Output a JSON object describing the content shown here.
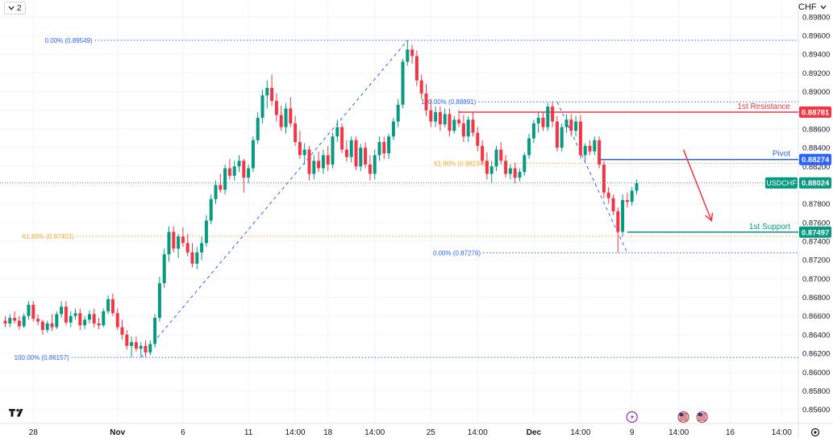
{
  "toolbar": {
    "collapse_icon": "chevron-down-icon",
    "collapse_label": "2",
    "currency_label": "CHF",
    "currency_icon": "chevron-down-icon",
    "settings_icon": "gear-icon",
    "logo_icon": "tradingview-logo-icon"
  },
  "chart_data": {
    "type": "candlestick",
    "symbol": "USDCHF",
    "currency": "CHF",
    "ylim": [
      0.8545,
      0.8998
    ],
    "y_ticks": [
      0.856,
      0.858,
      0.86,
      0.862,
      0.864,
      0.866,
      0.868,
      0.87,
      0.872,
      0.874,
      0.876,
      0.878,
      0.88,
      0.882,
      0.884,
      0.886,
      0.888,
      0.89,
      0.892,
      0.894,
      0.896,
      0.898
    ],
    "y_tick_labels": [
      "0.85600",
      "0.85800",
      "0.86000",
      "0.86200",
      "0.86400",
      "0.86600",
      "0.86800",
      "0.87000",
      "0.87200",
      "0.87400",
      "0.87600",
      "0.87800",
      "0.88000",
      "0.88200",
      "0.88400",
      "0.88600",
      "0.88800",
      "0.89000",
      "0.89200",
      "0.89400",
      "0.89600",
      "0.89800"
    ],
    "x_labels": [
      {
        "text": "28",
        "bar": 6
      },
      {
        "text": "Nov",
        "bar": 24
      },
      {
        "text": "6",
        "bar": 38
      },
      {
        "text": "11",
        "bar": 52
      },
      {
        "text": "14:00",
        "bar": 62
      },
      {
        "text": "18",
        "bar": 69
      },
      {
        "text": "14:00",
        "bar": 79
      },
      {
        "text": "25",
        "bar": 91
      },
      {
        "text": "14:00",
        "bar": 101
      },
      {
        "text": "Dec",
        "bar": 113
      },
      {
        "text": "14:00",
        "bar": 123
      },
      {
        "text": "9",
        "bar": 134
      },
      {
        "text": "14:00",
        "bar": 144
      },
      {
        "text": "16",
        "bar": 155
      },
      {
        "text": "14:00",
        "bar": 166
      }
    ],
    "series": [
      {
        "name": "USDCHF",
        "ohlc": [
          [
            0.8655,
            0.866,
            0.8648,
            0.8652
          ],
          [
            0.8652,
            0.8662,
            0.8648,
            0.8658
          ],
          [
            0.8658,
            0.8665,
            0.8652,
            0.8655
          ],
          [
            0.8655,
            0.866,
            0.8645,
            0.8649
          ],
          [
            0.8649,
            0.8663,
            0.8647,
            0.866
          ],
          [
            0.866,
            0.8676,
            0.8656,
            0.8672
          ],
          [
            0.8672,
            0.8676,
            0.8654,
            0.8657
          ],
          [
            0.8657,
            0.8662,
            0.865,
            0.8654
          ],
          [
            0.8654,
            0.8656,
            0.864,
            0.8645
          ],
          [
            0.8645,
            0.8655,
            0.8642,
            0.8652
          ],
          [
            0.8652,
            0.8662,
            0.8644,
            0.8648
          ],
          [
            0.8648,
            0.8665,
            0.8646,
            0.8662
          ],
          [
            0.8662,
            0.8676,
            0.8658,
            0.867
          ],
          [
            0.867,
            0.8676,
            0.865,
            0.8653
          ],
          [
            0.8653,
            0.8665,
            0.8648,
            0.866
          ],
          [
            0.866,
            0.8668,
            0.8656,
            0.8663
          ],
          [
            0.8663,
            0.8668,
            0.8645,
            0.865
          ],
          [
            0.865,
            0.866,
            0.8646,
            0.8656
          ],
          [
            0.8656,
            0.8666,
            0.8652,
            0.8662
          ],
          [
            0.8662,
            0.8668,
            0.8648,
            0.8652
          ],
          [
            0.8652,
            0.8658,
            0.8646,
            0.865
          ],
          [
            0.865,
            0.8668,
            0.8648,
            0.8665
          ],
          [
            0.8665,
            0.8682,
            0.8662,
            0.8678
          ],
          [
            0.8678,
            0.8684,
            0.866,
            0.8663
          ],
          [
            0.8663,
            0.8668,
            0.8645,
            0.8648
          ],
          [
            0.8648,
            0.8656,
            0.8635,
            0.864
          ],
          [
            0.864,
            0.8645,
            0.8624,
            0.8628
          ],
          [
            0.8628,
            0.8638,
            0.8616,
            0.8632
          ],
          [
            0.8632,
            0.8638,
            0.8622,
            0.8625
          ],
          [
            0.8625,
            0.8632,
            0.8617,
            0.8628
          ],
          [
            0.8628,
            0.8634,
            0.8616,
            0.8621
          ],
          [
            0.8621,
            0.8634,
            0.8618,
            0.863
          ],
          [
            0.863,
            0.8662,
            0.8626,
            0.8658
          ],
          [
            0.8658,
            0.8702,
            0.8654,
            0.8695
          ],
          [
            0.8695,
            0.8732,
            0.869,
            0.8726
          ],
          [
            0.8726,
            0.8756,
            0.8718,
            0.875
          ],
          [
            0.875,
            0.8756,
            0.8728,
            0.8732
          ],
          [
            0.8732,
            0.8748,
            0.8722,
            0.8745
          ],
          [
            0.8745,
            0.8755,
            0.8734,
            0.8738
          ],
          [
            0.8738,
            0.8748,
            0.8724,
            0.8728
          ],
          [
            0.8728,
            0.8738,
            0.8712,
            0.8716
          ],
          [
            0.8716,
            0.8734,
            0.871,
            0.8728
          ],
          [
            0.8728,
            0.8745,
            0.872,
            0.8738
          ],
          [
            0.8738,
            0.8768,
            0.8734,
            0.8762
          ],
          [
            0.8762,
            0.879,
            0.8758,
            0.8785
          ],
          [
            0.8785,
            0.8805,
            0.878,
            0.88
          ],
          [
            0.88,
            0.8812,
            0.8792,
            0.8795
          ],
          [
            0.8795,
            0.8822,
            0.879,
            0.8818
          ],
          [
            0.8818,
            0.8828,
            0.8806,
            0.881
          ],
          [
            0.881,
            0.8826,
            0.8805,
            0.882
          ],
          [
            0.882,
            0.8832,
            0.8814,
            0.8826
          ],
          [
            0.8826,
            0.8828,
            0.8792,
            0.8808
          ],
          [
            0.8808,
            0.8822,
            0.8802,
            0.8818
          ],
          [
            0.8818,
            0.8852,
            0.8814,
            0.8848
          ],
          [
            0.8848,
            0.8878,
            0.8844,
            0.8872
          ],
          [
            0.8872,
            0.8902,
            0.8866,
            0.8896
          ],
          [
            0.8896,
            0.8912,
            0.8882,
            0.8904
          ],
          [
            0.8904,
            0.8918,
            0.8885,
            0.889
          ],
          [
            0.889,
            0.8898,
            0.8868,
            0.8875
          ],
          [
            0.8875,
            0.8885,
            0.8858,
            0.8862
          ],
          [
            0.8862,
            0.8888,
            0.8855,
            0.8882
          ],
          [
            0.8882,
            0.8894,
            0.8862,
            0.8866
          ],
          [
            0.8866,
            0.8874,
            0.8842,
            0.8846
          ],
          [
            0.8846,
            0.8858,
            0.8828,
            0.8832
          ],
          [
            0.8832,
            0.8845,
            0.8822,
            0.8838
          ],
          [
            0.8838,
            0.8842,
            0.8805,
            0.8812
          ],
          [
            0.8812,
            0.8832,
            0.8806,
            0.8826
          ],
          [
            0.8826,
            0.8836,
            0.8814,
            0.8818
          ],
          [
            0.8818,
            0.8838,
            0.8812,
            0.8832
          ],
          [
            0.8832,
            0.8842,
            0.8815,
            0.8822
          ],
          [
            0.8822,
            0.8856,
            0.8818,
            0.8852
          ],
          [
            0.8852,
            0.887,
            0.8846,
            0.8862
          ],
          [
            0.8862,
            0.8866,
            0.8834,
            0.8838
          ],
          [
            0.8838,
            0.8848,
            0.8825,
            0.883
          ],
          [
            0.883,
            0.8852,
            0.8824,
            0.8848
          ],
          [
            0.8848,
            0.8852,
            0.8816,
            0.882
          ],
          [
            0.882,
            0.8844,
            0.8815,
            0.884
          ],
          [
            0.884,
            0.8846,
            0.8818,
            0.8822
          ],
          [
            0.8822,
            0.8832,
            0.8805,
            0.8812
          ],
          [
            0.8812,
            0.8838,
            0.8806,
            0.8832
          ],
          [
            0.8832,
            0.8852,
            0.8826,
            0.8846
          ],
          [
            0.8846,
            0.8852,
            0.8828,
            0.8834
          ],
          [
            0.8834,
            0.8855,
            0.8828,
            0.8852
          ],
          [
            0.8852,
            0.8872,
            0.8848,
            0.8868
          ],
          [
            0.8868,
            0.8892,
            0.8862,
            0.8886
          ],
          [
            0.8886,
            0.8935,
            0.8882,
            0.8932
          ],
          [
            0.8932,
            0.8955,
            0.8928,
            0.8945
          ],
          [
            0.8945,
            0.895,
            0.893,
            0.8938
          ],
          [
            0.8938,
            0.8944,
            0.8906,
            0.8912
          ],
          [
            0.8912,
            0.8918,
            0.8892,
            0.8898
          ],
          [
            0.8898,
            0.8908,
            0.8874,
            0.888
          ],
          [
            0.888,
            0.8892,
            0.8862,
            0.8868
          ],
          [
            0.8868,
            0.8884,
            0.8862,
            0.8878
          ],
          [
            0.8878,
            0.8884,
            0.8858,
            0.8865
          ],
          [
            0.8865,
            0.8882,
            0.8862,
            0.8876
          ],
          [
            0.8876,
            0.8882,
            0.8852,
            0.8858
          ],
          [
            0.8858,
            0.8874,
            0.8855,
            0.887
          ],
          [
            0.887,
            0.888,
            0.8862,
            0.8866
          ],
          [
            0.8866,
            0.8875,
            0.8846,
            0.8852
          ],
          [
            0.8852,
            0.8874,
            0.8846,
            0.887
          ],
          [
            0.887,
            0.8878,
            0.8852,
            0.8856
          ],
          [
            0.8856,
            0.8862,
            0.8836,
            0.8842
          ],
          [
            0.8842,
            0.8848,
            0.8822,
            0.8826
          ],
          [
            0.8826,
            0.8835,
            0.8806,
            0.8812
          ],
          [
            0.8812,
            0.8826,
            0.8802,
            0.882
          ],
          [
            0.882,
            0.8842,
            0.8815,
            0.8838
          ],
          [
            0.8838,
            0.8846,
            0.8822,
            0.8826
          ],
          [
            0.8826,
            0.8832,
            0.8808,
            0.8812
          ],
          [
            0.8812,
            0.8822,
            0.8806,
            0.8818
          ],
          [
            0.8818,
            0.8824,
            0.8802,
            0.8808
          ],
          [
            0.8808,
            0.8818,
            0.8804,
            0.8814
          ],
          [
            0.8814,
            0.8835,
            0.881,
            0.8832
          ],
          [
            0.8832,
            0.8855,
            0.8828,
            0.885
          ],
          [
            0.885,
            0.887,
            0.8845,
            0.8866
          ],
          [
            0.8866,
            0.8878,
            0.8856,
            0.8872
          ],
          [
            0.8872,
            0.8878,
            0.8858,
            0.8862
          ],
          [
            0.8862,
            0.8888,
            0.8858,
            0.8884
          ],
          [
            0.8884,
            0.8889,
            0.8862,
            0.8868
          ],
          [
            0.8868,
            0.8874,
            0.8836,
            0.884
          ],
          [
            0.884,
            0.8866,
            0.8836,
            0.8862
          ],
          [
            0.8862,
            0.8876,
            0.8856,
            0.887
          ],
          [
            0.887,
            0.8876,
            0.8852,
            0.8858
          ],
          [
            0.8858,
            0.8874,
            0.8852,
            0.8868
          ],
          [
            0.8868,
            0.8875,
            0.8828,
            0.8832
          ],
          [
            0.8832,
            0.8845,
            0.8826,
            0.8842
          ],
          [
            0.8842,
            0.8848,
            0.8832,
            0.8836
          ],
          [
            0.8836,
            0.8852,
            0.8832,
            0.8848
          ],
          [
            0.8848,
            0.8852,
            0.8818,
            0.8822
          ],
          [
            0.8822,
            0.8826,
            0.8786,
            0.8792
          ],
          [
            0.8792,
            0.8798,
            0.878,
            0.8786
          ],
          [
            0.8786,
            0.879,
            0.8768,
            0.8772
          ],
          [
            0.8772,
            0.8776,
            0.8728,
            0.875
          ],
          [
            0.875,
            0.879,
            0.8745,
            0.8784
          ],
          [
            0.8784,
            0.8792,
            0.8776,
            0.8782
          ],
          [
            0.8782,
            0.8798,
            0.8778,
            0.8794
          ],
          [
            0.8794,
            0.8806,
            0.879,
            0.8802
          ]
        ]
      }
    ],
    "fib_retracements": [
      {
        "from_bar": 29,
        "to_bar": 86,
        "levels": [
          {
            "label": "0.00% (0.89549)",
            "price": 0.89549,
            "color": "#2962ff",
            "labelBar": 19
          },
          {
            "label": "61.80% (0.87453)",
            "price": 0.87453,
            "color": "#f5a623",
            "labelBar": 15
          },
          {
            "label": "100.00% (0.86157)",
            "price": 0.86157,
            "color": "#2962ff",
            "labelBar": 14
          }
        ]
      },
      {
        "from_bar": 118,
        "to_bar": 133,
        "levels": [
          {
            "label": "100.00% (0.88891)",
            "price": 0.88891,
            "color": "#2962ff",
            "labelBar": 101
          },
          {
            "label": "61.80% (0.88234)",
            "price": 0.88234,
            "color": "#f5a623",
            "labelBar": 103
          },
          {
            "label": "0.00% (0.87276)",
            "price": 0.87276,
            "color": "#2962ff",
            "labelBar": 102
          }
        ]
      }
    ],
    "horizontal_levels": [
      {
        "name": "1st Resistance",
        "price": 0.88781,
        "label": "0.88781",
        "color": "#f23645",
        "from_bar": 97
      },
      {
        "name": "Pivot",
        "price": 0.88274,
        "label": "0.88274",
        "color": "#2962ff",
        "from_bar": 127
      },
      {
        "name": "1st Support",
        "price": 0.87497,
        "label": "0.87497",
        "color": "#089981",
        "from_bar": 133
      }
    ],
    "last_price": {
      "symbol": "USDCHF",
      "price": 0.88024,
      "label": "0.88024",
      "color": "#089981"
    },
    "projection_arrow": {
      "from": [
        145,
        0.8838
      ],
      "to": [
        151,
        0.8762
      ],
      "color": "#f23645"
    },
    "event_icons": [
      {
        "name": "lightning-icon",
        "bar": 134,
        "color": "#9c27b0"
      },
      {
        "name": "us-flag-icon",
        "bar": 145
      },
      {
        "name": "us-flag-icon",
        "bar": 149
      }
    ],
    "colors": {
      "up": "#089981",
      "down": "#f23645",
      "grid": "#f0f3fa",
      "axis_text": "#131722"
    }
  }
}
